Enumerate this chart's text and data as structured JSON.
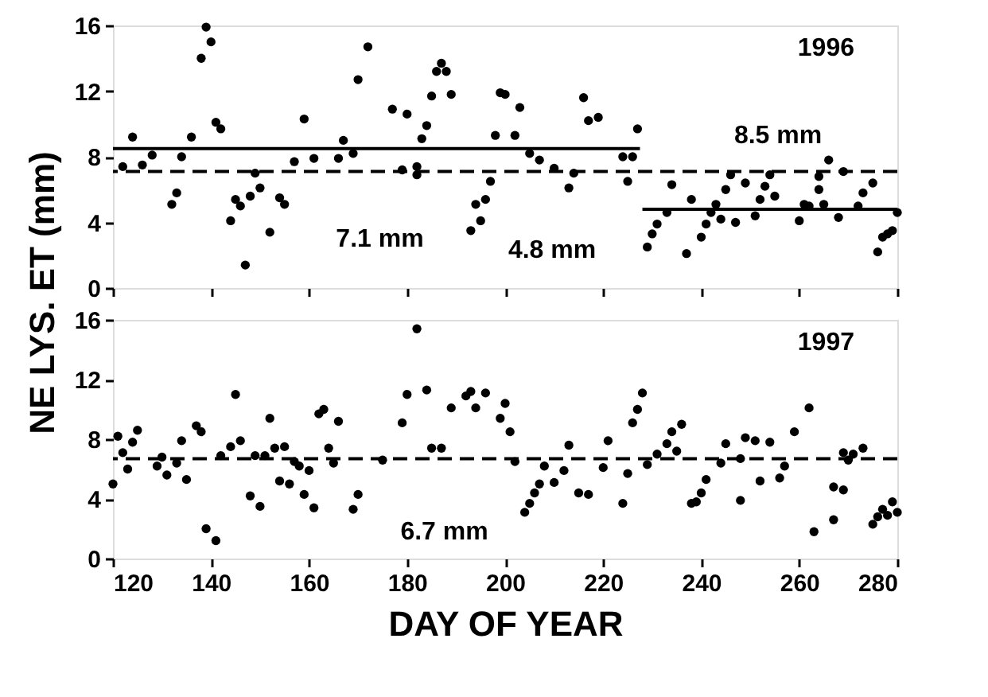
{
  "chart_data": [
    {
      "type": "scatter",
      "ylabel": "NE LYS.  ET (mm)",
      "xlim": [
        120,
        280
      ],
      "xticks": [
        120,
        140,
        160,
        180,
        200,
        220,
        240,
        260,
        280
      ],
      "ylim": [
        0,
        16
      ],
      "yticks": [
        0,
        4,
        8,
        12,
        16
      ],
      "tick_labels": "y",
      "grid": false,
      "marker": "circle",
      "series": [
        {
          "color": "#000000",
          "x": [
            122,
            124,
            126,
            128,
            132,
            133,
            134,
            136,
            138,
            139,
            140,
            141,
            142,
            144,
            145,
            146,
            147,
            148,
            149,
            150,
            152,
            154,
            155,
            157,
            159,
            161,
            166,
            167,
            169,
            170,
            172,
            177,
            179,
            180,
            182,
            182,
            183,
            184,
            185,
            186,
            187,
            188,
            189,
            193,
            194,
            195,
            196,
            197,
            198,
            199,
            200,
            202,
            203,
            205,
            207,
            210,
            213,
            214,
            216,
            217,
            219,
            224,
            225,
            226,
            227,
            229,
            230,
            231,
            233,
            234,
            237,
            238,
            240,
            241,
            242,
            243,
            244,
            245,
            246,
            247,
            249,
            251,
            252,
            253,
            254,
            255,
            260,
            261,
            262,
            264,
            264,
            265,
            266,
            268,
            269,
            272,
            273,
            275,
            276,
            277,
            278,
            279,
            280
          ],
          "values": [
            7.4,
            9.2,
            7.5,
            8.1,
            5.1,
            5.8,
            8.0,
            9.2,
            14.0,
            15.9,
            15.0,
            10.1,
            9.7,
            4.1,
            5.4,
            5.0,
            1.4,
            5.6,
            7.0,
            6.1,
            3.4,
            5.5,
            5.1,
            7.7,
            10.3,
            7.9,
            7.9,
            9.0,
            8.2,
            12.7,
            14.7,
            10.9,
            7.2,
            10.6,
            7.4,
            6.9,
            9.1,
            9.9,
            11.7,
            13.2,
            13.7,
            13.2,
            11.8,
            3.5,
            5.1,
            4.1,
            5.4,
            6.5,
            9.3,
            11.9,
            11.8,
            9.3,
            11.0,
            8.2,
            7.8,
            7.3,
            6.1,
            7.0,
            11.6,
            10.2,
            10.4,
            8.0,
            6.5,
            8.0,
            9.7,
            2.5,
            3.3,
            3.9,
            4.6,
            6.3,
            2.1,
            5.4,
            3.1,
            3.9,
            4.6,
            5.1,
            4.2,
            6.0,
            6.9,
            4.0,
            6.4,
            4.4,
            5.4,
            6.2,
            6.9,
            5.6,
            4.1,
            5.1,
            5.0,
            6.0,
            6.8,
            5.1,
            7.8,
            4.3,
            7.1,
            5.0,
            5.8,
            6.4,
            2.2,
            3.1,
            3.3,
            3.5,
            4.6
          ]
        },
        {
          "type": "line",
          "color": "#000000",
          "line_style": "solid",
          "marker": "none",
          "x": [
            120,
            227.5
          ],
          "values": [
            8.5,
            8.5
          ]
        },
        {
          "type": "line",
          "color": "#000000",
          "line_style": "solid",
          "marker": "none",
          "x": [
            228,
            280
          ],
          "values": [
            4.8,
            4.8
          ]
        }
      ],
      "ref_lines": [
        {
          "axis": "y",
          "value": 7.1,
          "color": "#000000",
          "line_style": "dashed"
        }
      ],
      "annotations": [
        "8.5 mm",
        {
          "text": "7.1 mm",
          "x": 166,
          "y": 7.1
        },
        "4.8 mm",
        "1996"
      ]
    },
    {
      "type": "scatter",
      "xlabel": "DAY OF YEAR",
      "xlim": [
        120,
        280
      ],
      "xticks": [
        120,
        140,
        160,
        180,
        200,
        220,
        240,
        260,
        280
      ],
      "ylim": [
        0,
        16
      ],
      "yticks": [
        0,
        4,
        8,
        12,
        16
      ],
      "grid": false,
      "marker": "circle",
      "series": [
        {
          "color": "#000000",
          "x": [
            120,
            121,
            122,
            123,
            124,
            125,
            129,
            130,
            131,
            133,
            134,
            135,
            137,
            138,
            139,
            141,
            142,
            144,
            145,
            146,
            148,
            149,
            150,
            151,
            152,
            153,
            154,
            155,
            156,
            157,
            158,
            159,
            160,
            161,
            162,
            163,
            164,
            165,
            166,
            169,
            170,
            175,
            179,
            180,
            182,
            184,
            185,
            187,
            189,
            192,
            193,
            194,
            196,
            199,
            200,
            201,
            202,
            204,
            205,
            206,
            207,
            208,
            210,
            212,
            213,
            215,
            217,
            220,
            221,
            224,
            225,
            226,
            227,
            228,
            229,
            231,
            233,
            234,
            235,
            236,
            238,
            239,
            240,
            241,
            244,
            245,
            248,
            248,
            249,
            251,
            252,
            254,
            256,
            257,
            259,
            262,
            263,
            267,
            267,
            269,
            269,
            270,
            271,
            273,
            275,
            276,
            277,
            278,
            279,
            280
          ],
          "values": [
            5.0,
            8.2,
            7.1,
            6.0,
            7.8,
            8.6,
            6.2,
            6.8,
            5.6,
            6.4,
            7.9,
            5.3,
            8.9,
            8.5,
            2.0,
            1.2,
            6.9,
            7.5,
            11.0,
            7.9,
            4.2,
            6.9,
            3.5,
            6.9,
            9.4,
            7.4,
            5.2,
            7.5,
            5.0,
            6.5,
            6.2,
            4.3,
            5.9,
            3.4,
            9.7,
            10.0,
            7.4,
            6.4,
            9.2,
            3.3,
            4.3,
            6.6,
            9.1,
            11.0,
            15.4,
            11.3,
            7.4,
            7.4,
            10.1,
            10.9,
            11.2,
            10.1,
            11.1,
            9.4,
            10.4,
            8.5,
            6.5,
            3.1,
            3.7,
            4.4,
            5.0,
            6.2,
            5.1,
            5.9,
            7.6,
            4.4,
            4.3,
            6.1,
            7.9,
            3.7,
            5.7,
            9.1,
            10.0,
            11.1,
            6.3,
            7.0,
            7.7,
            8.5,
            7.2,
            9.0,
            3.7,
            3.8,
            4.4,
            5.3,
            6.4,
            7.7,
            3.9,
            6.7,
            8.1,
            7.9,
            5.2,
            7.8,
            5.4,
            6.2,
            8.5,
            10.1,
            1.8,
            2.6,
            4.8,
            4.6,
            7.1,
            6.6,
            7.0,
            7.4,
            2.3,
            2.8,
            3.3,
            2.9,
            3.8,
            3.1
          ]
        }
      ],
      "ref_lines": [
        {
          "axis": "y",
          "value": 6.7,
          "color": "#000000",
          "line_style": "dashed"
        }
      ],
      "annotations": [
        {
          "text": "6.7 mm",
          "x": 178.5,
          "y": 6.7
        },
        "1997"
      ]
    }
  ]
}
